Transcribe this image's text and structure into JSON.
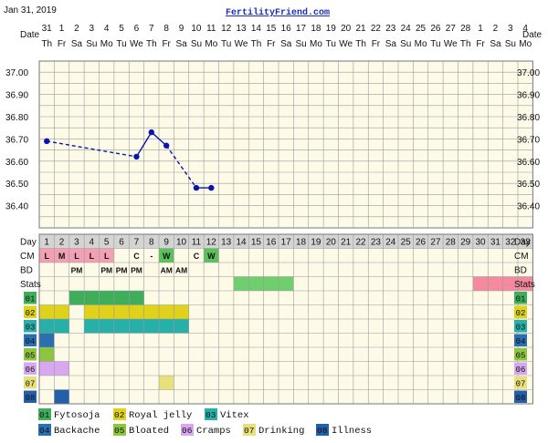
{
  "header": {
    "date": "Jan 31, 2019",
    "site": "FertilityFriend.com"
  },
  "chart_data": {
    "type": "line",
    "row_labels": {
      "date": "Date",
      "day": "Day",
      "cm": "CM",
      "bd": "BD",
      "stats": "Stats"
    },
    "dates": [
      "31",
      "1",
      "2",
      "3",
      "4",
      "5",
      "6",
      "7",
      "8",
      "9",
      "10",
      "11",
      "12",
      "13",
      "14",
      "15",
      "16",
      "17",
      "18",
      "19",
      "20",
      "21",
      "22",
      "23",
      "24",
      "25",
      "26",
      "27",
      "28",
      "1",
      "2",
      "3",
      "4"
    ],
    "weekdays": [
      "Th",
      "Fr",
      "Sa",
      "Su",
      "Mo",
      "Tu",
      "We",
      "Th",
      "Fr",
      "Sa",
      "Su",
      "Mo",
      "Tu",
      "We",
      "Th",
      "Fr",
      "Sa",
      "Su",
      "Mo",
      "Tu",
      "We",
      "Th",
      "Fr",
      "Sa",
      "Su",
      "Mo",
      "Tu",
      "We",
      "Th",
      "Fr",
      "Sa",
      "Su",
      "Mo"
    ],
    "days": [
      "1",
      "2",
      "3",
      "4",
      "5",
      "6",
      "7",
      "8",
      "9",
      "10",
      "11",
      "12",
      "13",
      "14",
      "15",
      "16",
      "17",
      "18",
      "19",
      "20",
      "21",
      "22",
      "23",
      "24",
      "25",
      "26",
      "27",
      "28",
      "29",
      "30",
      "31",
      "32",
      "33"
    ],
    "y_ticks": [
      "37.00",
      "36.90",
      "36.80",
      "36.70",
      "36.60",
      "36.50",
      "36.40"
    ],
    "ylim": [
      36.3,
      37.05
    ],
    "grid": true,
    "temperatures": [
      {
        "day": 1,
        "temp": 36.69
      },
      {
        "day": 7,
        "temp": 36.62
      },
      {
        "day": 8,
        "temp": 36.73
      },
      {
        "day": 9,
        "temp": 36.67
      },
      {
        "day": 11,
        "temp": 36.48
      },
      {
        "day": 12,
        "temp": 36.48
      }
    ],
    "line_segments": [
      {
        "from": 0,
        "to": 1,
        "style": "dashed"
      },
      {
        "from": 1,
        "to": 2,
        "style": "solid"
      },
      {
        "from": 2,
        "to": 3,
        "style": "solid"
      },
      {
        "from": 3,
        "to": 4,
        "style": "dashed"
      },
      {
        "from": 4,
        "to": 5,
        "style": "solid"
      }
    ],
    "line_color": "#0a14b4",
    "cm": [
      {
        "day": 1,
        "text": "L",
        "bg": "#f4a0b4"
      },
      {
        "day": 2,
        "text": "M",
        "bg": "#f4a0b4"
      },
      {
        "day": 3,
        "text": "L",
        "bg": "#f4a0b4"
      },
      {
        "day": 4,
        "text": "L",
        "bg": "#f4a0b4"
      },
      {
        "day": 5,
        "text": "L",
        "bg": "#f4a0b4"
      },
      {
        "day": 7,
        "text": "C",
        "bg": ""
      },
      {
        "day": 8,
        "text": "-",
        "bg": ""
      },
      {
        "day": 9,
        "text": "W",
        "bg": "#5cc05c"
      },
      {
        "day": 11,
        "text": "C",
        "bg": ""
      },
      {
        "day": 12,
        "text": "W",
        "bg": "#5cc05c"
      }
    ],
    "bd": [
      {
        "day": 3,
        "text": "PM"
      },
      {
        "day": 5,
        "text": "PM"
      },
      {
        "day": 6,
        "text": "PM"
      },
      {
        "day": 7,
        "text": "PM"
      },
      {
        "day": 9,
        "text": "AM"
      },
      {
        "day": 10,
        "text": "AM"
      }
    ],
    "stats": [
      {
        "start": 14,
        "end": 17,
        "color": "#6fcf6f"
      },
      {
        "start": 30,
        "end": 33,
        "color": "#f48aa0"
      }
    ],
    "symptom_rows": [
      {
        "code": "01",
        "color": "#3fae5a",
        "spans": [
          [
            3,
            7
          ]
        ]
      },
      {
        "code": "02",
        "color": "#e0d21a",
        "spans": [
          [
            1,
            2
          ],
          [
            4,
            10
          ]
        ]
      },
      {
        "code": "03",
        "color": "#26b0a8",
        "spans": [
          [
            1,
            2
          ],
          [
            4,
            10
          ]
        ]
      },
      {
        "code": "04",
        "color": "#2a6fb0",
        "spans": [
          [
            1,
            1
          ]
        ]
      },
      {
        "code": "05",
        "color": "#8cc63f",
        "spans": [
          [
            1,
            1
          ]
        ]
      },
      {
        "code": "06",
        "color": "#d7a8f0",
        "spans": [
          [
            1,
            2
          ]
        ]
      },
      {
        "code": "07",
        "color": "#e8e07a",
        "spans": [
          [
            9,
            9
          ]
        ]
      },
      {
        "code": "08",
        "color": "#2460a8",
        "spans": [
          [
            2,
            2
          ]
        ]
      }
    ],
    "legend": [
      {
        "code": "01",
        "label": "Fytosoja",
        "color": "#3fae5a"
      },
      {
        "code": "02",
        "label": "Royal jelly",
        "color": "#e0d21a"
      },
      {
        "code": "03",
        "label": "Vitex",
        "color": "#26b0a8"
      },
      {
        "code": "04",
        "label": "Backache",
        "color": "#2a6fb0"
      },
      {
        "code": "05",
        "label": "Bloated",
        "color": "#8cc63f"
      },
      {
        "code": "06",
        "label": "Cramps",
        "color": "#d7a8f0"
      },
      {
        "code": "07",
        "label": "Drinking",
        "color": "#e8e07a"
      },
      {
        "code": "08",
        "label": "Illness",
        "color": "#2460a8"
      }
    ]
  }
}
